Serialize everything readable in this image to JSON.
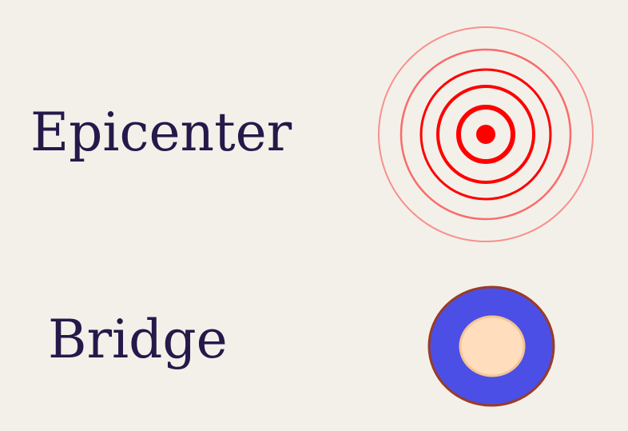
{
  "legend": {
    "items": [
      {
        "label": "Epicenter",
        "icon": "epicenter-rings-icon"
      },
      {
        "label": "Bridge",
        "icon": "bridge-ring-icon"
      }
    ]
  },
  "colors": {
    "background": "#f3f0ea",
    "label_text": "#231a4a",
    "epicenter_red": "#ff0000",
    "bridge_fill": "#4b4fe6",
    "bridge_stroke": "#9b3b24",
    "bridge_center": "#ffddbd"
  }
}
